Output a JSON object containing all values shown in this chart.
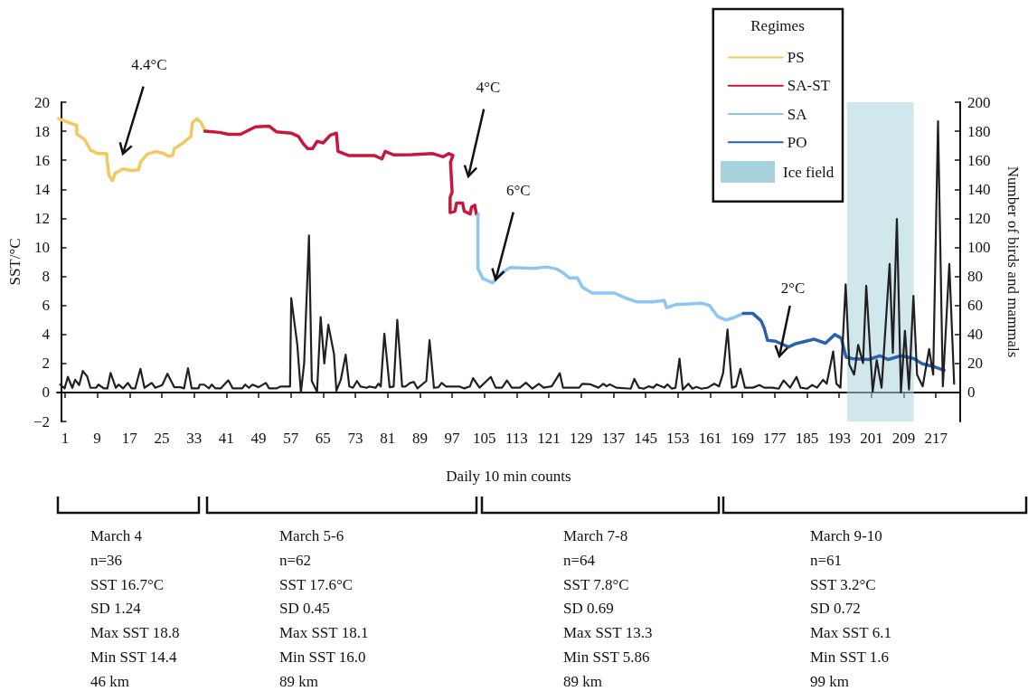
{
  "chart_data": {
    "type": "line",
    "xlabel": "Daily 10 min counts",
    "ylabel": "SST/°C",
    "y2label": "Number of birds and mammals",
    "legend_title": "Regimes",
    "legend": "top right",
    "grid": false,
    "marker": "none",
    "line_style": "solid",
    "xlim": [
      -1,
      223
    ],
    "xticks": [
      1,
      9,
      17,
      25,
      33,
      41,
      49,
      57,
      65,
      73,
      81,
      89,
      97,
      105,
      113,
      121,
      129,
      137,
      145,
      153,
      161,
      169,
      177,
      185,
      193,
      201,
      209,
      217
    ],
    "ylim": [
      -2,
      20
    ],
    "yticks": [
      -2,
      0,
      2,
      4,
      6,
      8,
      10,
      12,
      14,
      16,
      18,
      20
    ],
    "y2lim": [
      -20,
      200
    ],
    "y2ticks": [
      0,
      20,
      40,
      60,
      80,
      100,
      120,
      140,
      160,
      180,
      200
    ],
    "series": [
      {
        "name": "PS",
        "color": "#f2c862",
        "x": [
          -0.6,
          3.9,
          3.9,
          5.8,
          7.3,
          9.1,
          11.3,
          11.5,
          11.9,
          12.8,
          13.4,
          15.4,
          17.3,
          19.2,
          19.7,
          21.4,
          23.6,
          25.5,
          26.6,
          27.7,
          28.1,
          30.3,
          32.2,
          32.6,
          33.7,
          34.8,
          35.7
        ],
        "values": [
          18.86,
          18.4,
          17.8,
          17.45,
          16.7,
          16.46,
          16.46,
          15.86,
          14.93,
          14.6,
          15.1,
          15.4,
          15.3,
          15.34,
          15.86,
          16.42,
          16.6,
          16.46,
          16.27,
          16.33,
          16.8,
          17.2,
          17.64,
          18.6,
          18.86,
          18.58,
          18.0
        ]
      },
      {
        "name": "SA-ST",
        "color": "#c8163f",
        "x": [
          35.7,
          39.3,
          41.5,
          44.5,
          48.2,
          51.6,
          53.4,
          57.1,
          58.9,
          60.1,
          61.2,
          62.4,
          63.5,
          65.0,
          66.8,
          68.3,
          68.7,
          71.3,
          73.6,
          77.7,
          79.6,
          80.4,
          82.5,
          87.0,
          92.2,
          94.8,
          96.2,
          97.2,
          96.6,
          97.0,
          96.5,
          96.5,
          97.7,
          98.1,
          99.6,
          100.0,
          101.5,
          101.8,
          102.6,
          103.0,
          103.4
        ],
        "values": [
          18.0,
          17.92,
          17.79,
          17.79,
          18.3,
          18.35,
          17.96,
          17.87,
          17.64,
          17.13,
          16.8,
          16.8,
          17.3,
          17.2,
          17.73,
          17.87,
          16.61,
          16.33,
          16.33,
          16.33,
          16.09,
          16.61,
          16.37,
          16.39,
          16.46,
          16.24,
          16.46,
          16.33,
          15.86,
          13.8,
          13.43,
          12.4,
          12.49,
          13.05,
          13.05,
          12.49,
          12.3,
          12.77,
          12.9,
          12.3,
          12.26
        ]
      },
      {
        "name": "SA",
        "color": "#8ec6f0",
        "x": [
          103.4,
          103.4,
          104.6,
          107.0,
          109.4,
          111.4,
          117.3,
          120.5,
          122.9,
          124.5,
          126.1,
          128.1,
          129.3,
          131.7,
          137.3,
          139.7,
          142.9,
          146.9,
          149.6,
          150.2,
          152.4,
          158.8,
          160.8,
          162.8,
          164.8,
          166.8,
          169.2
        ],
        "values": [
          12.26,
          8.55,
          7.85,
          7.55,
          8.25,
          8.61,
          8.55,
          8.65,
          8.51,
          8.25,
          7.89,
          7.89,
          7.25,
          6.85,
          6.85,
          6.54,
          6.24,
          6.24,
          6.34,
          5.84,
          6.05,
          6.15,
          6.0,
          5.24,
          5.0,
          5.14,
          5.44
        ]
      },
      {
        "name": "PO",
        "color": "#2b62b0",
        "x": [
          169.2,
          171.6,
          173.6,
          174.4,
          175.2,
          177.2,
          180.4,
          182.0,
          186.8,
          189.6,
          191.9,
          193.5,
          194.7,
          196.3,
          200.3,
          203.1,
          205.1,
          208.3,
          211.5,
          213.5,
          216.3,
          219.0
        ],
        "values": [
          5.44,
          5.44,
          4.94,
          4.44,
          3.6,
          3.53,
          3.13,
          3.34,
          3.67,
          3.39,
          3.99,
          3.74,
          2.43,
          2.33,
          2.27,
          2.53,
          2.27,
          2.53,
          2.33,
          1.99,
          1.79,
          1.53
        ]
      },
      {
        "axis": "y2",
        "color": "#231f20",
        "x": [
          -0.2,
          0.9,
          1.7,
          2.8,
          3.5,
          4.5,
          5.4,
          6.5,
          7.3,
          8.7,
          9.3,
          10.6,
          11.5,
          12.3,
          13.6,
          14.3,
          15.4,
          16.6,
          17.5,
          18.4,
          19.7,
          20.7,
          22.5,
          23.4,
          25.1,
          26.4,
          28.1,
          29.6,
          30.5,
          31.5,
          32.4,
          34.1,
          34.4,
          35.5,
          36.7,
          37.4,
          38.3,
          39.6,
          41.5,
          42.6,
          44.9,
          45.7,
          46.6,
          47.5,
          49.0,
          50.8,
          51.6,
          53.4,
          54.5,
          56.8,
          57.1,
          58.6,
          59.5,
          60.3,
          61.5,
          62.2,
          63.5,
          64.4,
          65.3,
          66.3,
          67.7,
          68.3,
          69.4,
          70.6,
          71.5,
          72.4,
          73.4,
          74.3,
          75.8,
          76.5,
          78.0,
          78.7,
          79.3,
          80.2,
          81.5,
          82.5,
          83.4,
          84.6,
          85.4,
          86.6,
          87.5,
          88.4,
          90.6,
          91.4,
          92.5,
          93.6,
          94.4,
          95.5,
          98.8,
          100.0,
          101.4,
          102.2,
          103.8,
          106.6,
          107.8,
          109.4,
          110.6,
          111.8,
          113.8,
          115.3,
          116.9,
          118.5,
          119.7,
          121.7,
          123.7,
          124.5,
          128.5,
          129.3,
          131.3,
          133.3,
          134.5,
          135.3,
          136.1,
          137.7,
          141.3,
          142.2,
          143.3,
          144.5,
          145.7,
          146.9,
          147.7,
          149.6,
          150.4,
          151.5,
          152.4,
          153.4,
          154.2,
          155.6,
          156.6,
          157.6,
          158.8,
          160.4,
          162.0,
          163.2,
          164.2,
          165.3,
          166.4,
          167.4,
          168.5,
          169.6,
          171.6,
          173.2,
          174.4,
          176.4,
          178.0,
          179.2,
          180.8,
          182.4,
          183.4,
          185.1,
          186.3,
          187.5,
          189.0,
          189.9,
          191.5,
          192.3,
          193.3,
          194.6,
          195.5,
          196.7,
          197.7,
          198.9,
          199.7,
          201.3,
          202.3,
          203.5,
          205.5,
          206.3,
          207.3,
          208.3,
          209.3,
          210.3,
          211.4,
          212.3,
          213.7,
          215.3,
          216.3,
          217.5,
          218.7,
          220.3,
          221.5
        ],
        "values": [
          5.4,
          2.8,
          10.7,
          3.2,
          8.8,
          5.1,
          14.8,
          11.0,
          3.2,
          3.2,
          5.4,
          2.8,
          2.8,
          13.5,
          3.2,
          5.4,
          2.8,
          6.6,
          2.8,
          2.8,
          16.3,
          3.2,
          6.6,
          3.2,
          5.1,
          12.9,
          3.6,
          3.6,
          2.8,
          16.7,
          2.8,
          2.8,
          5.4,
          5.4,
          2.8,
          5.4,
          2.8,
          2.8,
          8.4,
          2.8,
          2.8,
          5.4,
          3.2,
          5.4,
          3.6,
          6.6,
          2.8,
          2.8,
          4.1,
          4.1,
          65.0,
          33.1,
          0,
          20.0,
          108.1,
          7.9,
          0.4,
          51.9,
          20.0,
          46.6,
          26.6,
          1.3,
          8.8,
          26.0,
          4.1,
          3.2,
          7.9,
          4.1,
          3.2,
          4.1,
          3.2,
          6.0,
          4.1,
          40.6,
          3.6,
          4.1,
          50.0,
          4.1,
          4.1,
          6.6,
          7.3,
          2.8,
          7.9,
          36.0,
          3.2,
          3.6,
          6.6,
          4.1,
          4.1,
          2.8,
          4.1,
          9.9,
          3.3,
          10.7,
          3.3,
          3.3,
          8.3,
          3.3,
          3.3,
          6.7,
          2.6,
          6.0,
          3.3,
          4.2,
          13.3,
          3.3,
          3.3,
          6.0,
          5.6,
          3.3,
          6.0,
          4.2,
          5.6,
          3.3,
          2.6,
          9.3,
          3.3,
          2.6,
          4.2,
          3.3,
          5.6,
          3.3,
          5.6,
          2.6,
          3.3,
          23.3,
          1.9,
          6.0,
          2.6,
          3.8,
          2.6,
          3.3,
          6.0,
          4.2,
          13.3,
          43.4,
          3.3,
          4.2,
          16.3,
          3.3,
          3.3,
          5.1,
          3.3,
          3.3,
          2.6,
          8.3,
          3.3,
          10.7,
          3.3,
          2.6,
          5.1,
          3.3,
          8.7,
          6.0,
          28.3,
          6.0,
          3.3,
          74.5,
          19.3,
          12.3,
          32.8,
          20.3,
          73.5,
          0.6,
          22.3,
          3.3,
          88.5,
          27.3,
          119.6,
          0,
          42.4,
          2.0,
          66.5,
          12.3,
          4.2,
          29.9,
          12.3,
          186.9,
          4.2,
          88.5,
          6.0
        ]
      }
    ],
    "bands": [
      {
        "axis": "x",
        "from": 194.9,
        "to": 211.5,
        "label": "Ice field",
        "color": "#a9d3dc"
      }
    ],
    "annotations": [
      "4.4°C",
      "4°C",
      {
        "text": "6°C",
        "x": 107.8,
        "y": 7.78
      },
      "2°C",
      "March 4\nn=36\nSST 16.7°C\nSD 1.24\nMax SST 18.8\nMin SST 14.4\n46 km",
      "March 5-6\nn=62\nSST 17.6°C\nSD 0.45\nMax SST 18.1\nMin SST 16.0\n89 km",
      "March 7-8\nn=64\nSST 7.8°C\nSD 0.69\nMax SST 13.3\nMin SST 5.86\n89 km",
      "March 9-10\nn=61\nSST 3.2°C\nSD 0.72\nMax SST 6.1\nMin SST 1.6\n99 km"
    ]
  }
}
